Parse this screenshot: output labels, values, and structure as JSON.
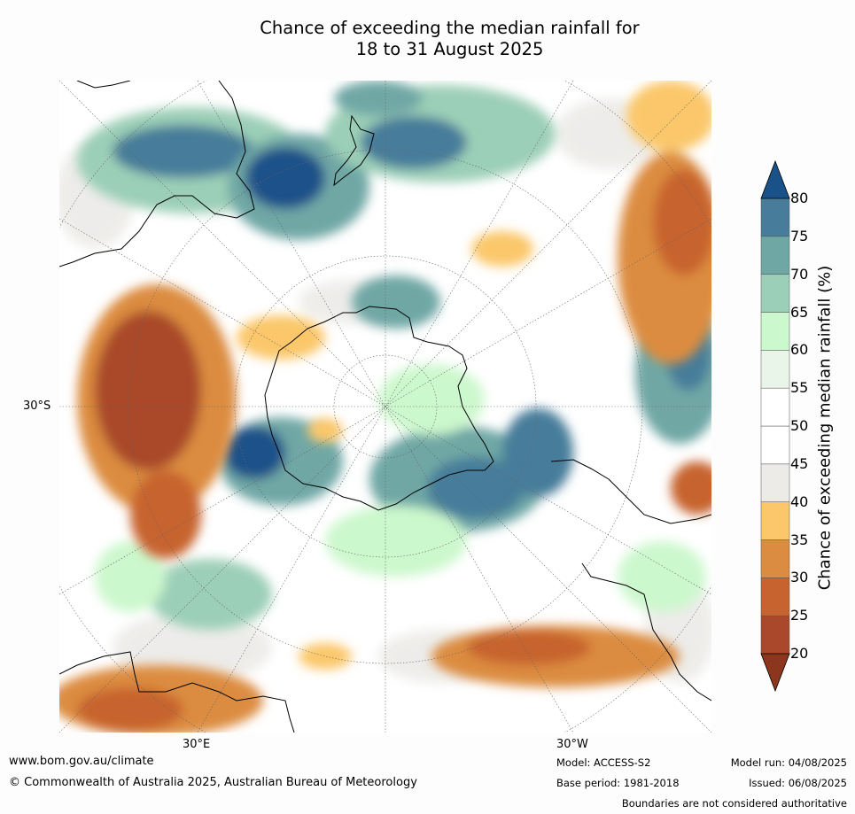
{
  "title_line1": "Chance of exceeding the median rainfall for",
  "title_line2": "18 to 31 August 2025",
  "map_labels": {
    "lat_30s": "30°S",
    "lon_30e": "30°E",
    "lon_30w": "30°W"
  },
  "footer": {
    "website": "www.bom.gov.au/climate",
    "copyright": "© Commonwealth of Australia 2025, Australian Bureau of Meteorology",
    "model": "Model: ACCESS-S2",
    "base_period": "Base period: 1981-2018",
    "model_run": "Model run: 04/08/2025",
    "issued": "Issued: 06/08/2025",
    "disclaimer": "Boundaries are not considered authoritative"
  },
  "colorbar": {
    "label": "Chance of exceeding median rainfall (%)",
    "ticks": [
      "20",
      "25",
      "30",
      "35",
      "40",
      "45",
      "50",
      "55",
      "60",
      "65",
      "70",
      "75",
      "80"
    ],
    "colors": [
      "#a9482a",
      "#c7632e",
      "#dc8c40",
      "#fbc76a",
      "#ecebe8",
      "#ffffff",
      "#ffffff",
      "#e9f5e8",
      "#ccf8cd",
      "#9ccfb7",
      "#6fa7a5",
      "#477d9a"
    ],
    "low_arrow_color": "#8c361e",
    "high_arrow_color": "#1a5189"
  }
}
